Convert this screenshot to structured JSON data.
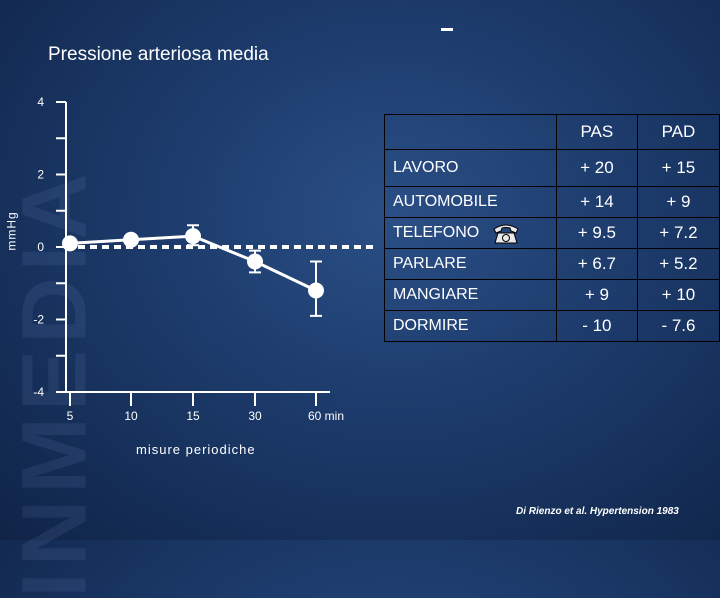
{
  "slide": {
    "title": "Pressione arteriosa media",
    "citation": "Di Rienzo et al. Hypertension 1983",
    "watermark": "INMEDIA"
  },
  "chart_data": {
    "type": "line",
    "title": "Pressione arteriosa media",
    "ylabel": "mmHg",
    "xlabel": "misure periodiche",
    "x_tick_labels": [
      "5",
      "10",
      "15",
      "30",
      "60 min"
    ],
    "y_tick_labels": [
      "4",
      "2",
      "0",
      "-2",
      "-4"
    ],
    "ylim": [
      -4,
      4
    ],
    "reference_line": 0,
    "series": [
      {
        "x": [
          "5",
          "10",
          "15",
          "30",
          "60 min"
        ],
        "values": [
          0.1,
          0.2,
          0.3,
          -0.4,
          -1.2
        ],
        "error_low": [
          null,
          null,
          0.05,
          -0.7,
          -1.9
        ],
        "error_high": [
          null,
          null,
          0.6,
          -0.1,
          -0.4
        ],
        "color": "#ffffff"
      }
    ]
  },
  "table": {
    "headers": [
      "",
      "PAS",
      "PAD"
    ],
    "rows": [
      {
        "label": "LAVORO",
        "pas": "+ 20",
        "pad": "+ 15"
      },
      {
        "label": "AUTOMOBILE",
        "pas": "+ 14",
        "pad": "+ 9"
      },
      {
        "label": "TELEFONO",
        "pas": "+ 9.5",
        "pad": "+ 7.2",
        "icon": "telephone-icon"
      },
      {
        "label": "PARLARE",
        "pas": "+ 6.7",
        "pad": "+ 5.2"
      },
      {
        "label": "MANGIARE",
        "pas": "+ 9",
        "pad": "+ 10"
      },
      {
        "label": "DORMIRE",
        "pas": "- 10",
        "pad": "- 7.6"
      }
    ]
  }
}
